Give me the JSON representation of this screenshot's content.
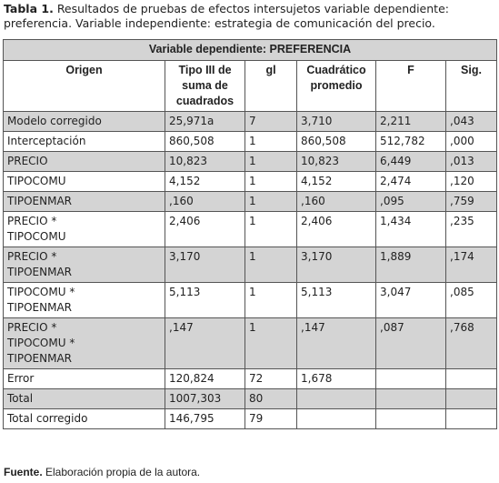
{
  "caption": {
    "label": "Tabla 1.",
    "text": "Resultados de pruebas de efectos intersujetos variable dependiente: preferencia. Variable independiente: estrategia de comunicación del precio."
  },
  "table": {
    "title": "Variable dependiente: PREFERENCIA",
    "columns": [
      "Origen",
      "Tipo III de suma de cuadrados",
      "gl",
      "Cuadrático promedio",
      "F",
      "Sig."
    ],
    "rows": [
      [
        "Modelo corregido",
        "25,971a",
        "7",
        "3,710",
        "2,211",
        ",043"
      ],
      [
        "Interceptación",
        "860,508",
        "1",
        "860,508",
        "512,782",
        ",000"
      ],
      [
        "PRECIO",
        "10,823",
        "1",
        "10,823",
        "6,449",
        ",013"
      ],
      [
        "TIPOCOMU",
        "4,152",
        "1",
        "4,152",
        "2,474",
        ",120"
      ],
      [
        "TIPOENMAR",
        ",160",
        "1",
        ",160",
        ",095",
        ",759"
      ],
      [
        "PRECIO *\nTIPOCOMU",
        "2,406",
        "1",
        "2,406",
        "1,434",
        ",235"
      ],
      [
        "PRECIO *\nTIPOENMAR",
        "3,170",
        "1",
        "3,170",
        "1,889",
        ",174"
      ],
      [
        "TIPOCOMU *\nTIPOENMAR",
        "5,113",
        "1",
        "5,113",
        "3,047",
        ",085"
      ],
      [
        "PRECIO *\nTIPOCOMU *\nTIPOENMAR",
        ",147",
        "1",
        ",147",
        ",087",
        ",768"
      ],
      [
        "Error",
        "120,824",
        "72",
        "1,678"
      ],
      [
        "Total",
        "1007,303",
        "80"
      ],
      [
        "Total corregido",
        "146,795",
        "79"
      ]
    ]
  },
  "footer": {
    "label": "Fuente.",
    "text": "Elaboración propia de la autora."
  }
}
